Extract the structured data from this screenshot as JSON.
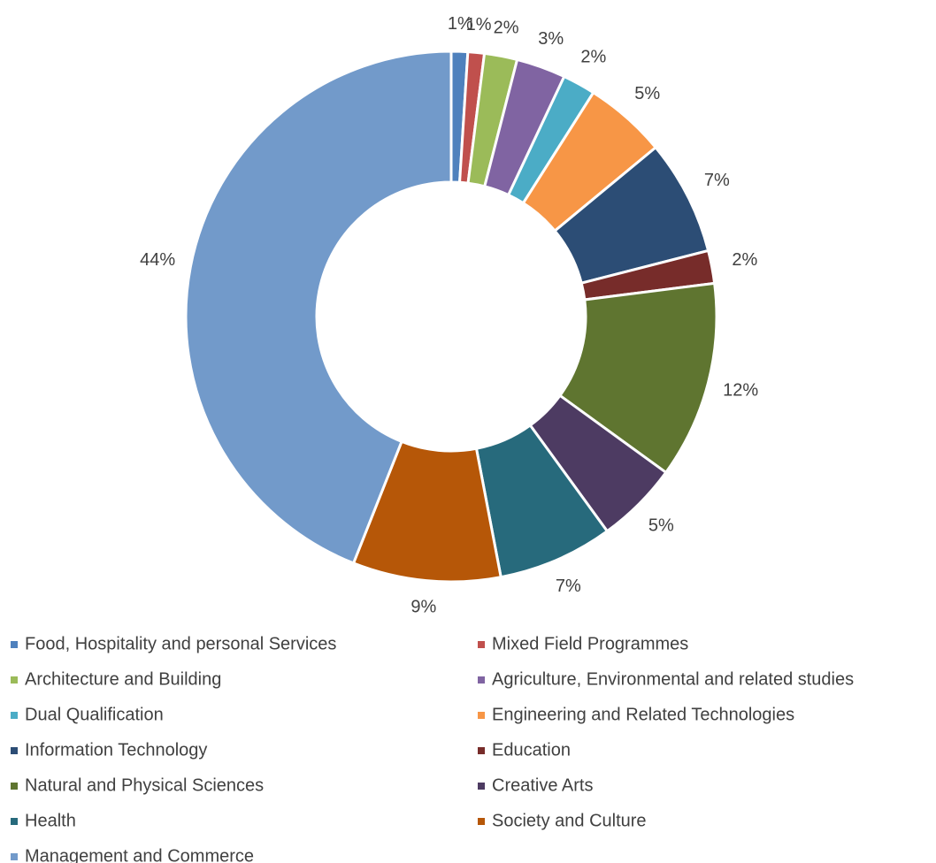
{
  "chart_data": {
    "type": "donut",
    "categories": [
      "Food, Hospitality and personal Services",
      "Mixed Field Programmes",
      "Architecture and Building",
      "Agriculture, Environmental and related studies",
      "Dual Qualification",
      "Engineering and Related Technologies",
      "Information Technology",
      "Education",
      "Natural and Physical Sciences",
      "Creative Arts",
      "Health",
      "Society and Culture",
      "Management and Commerce"
    ],
    "values": [
      1,
      1,
      2,
      3,
      2,
      5,
      7,
      2,
      12,
      5,
      7,
      9,
      44
    ],
    "value_labels": [
      "1%",
      "1%",
      "2%",
      "3%",
      "2%",
      "5%",
      "7%",
      "2%",
      "12%",
      "5%",
      "7%",
      "9%",
      "44%"
    ],
    "colors": [
      "#4f81bd",
      "#c0504d",
      "#9bbb59",
      "#8064a2",
      "#4bacc6",
      "#f79646",
      "#2c4d75",
      "#772c2a",
      "#5f7530",
      "#4d3b62",
      "#276a7c",
      "#b65708",
      "#729aca"
    ]
  }
}
